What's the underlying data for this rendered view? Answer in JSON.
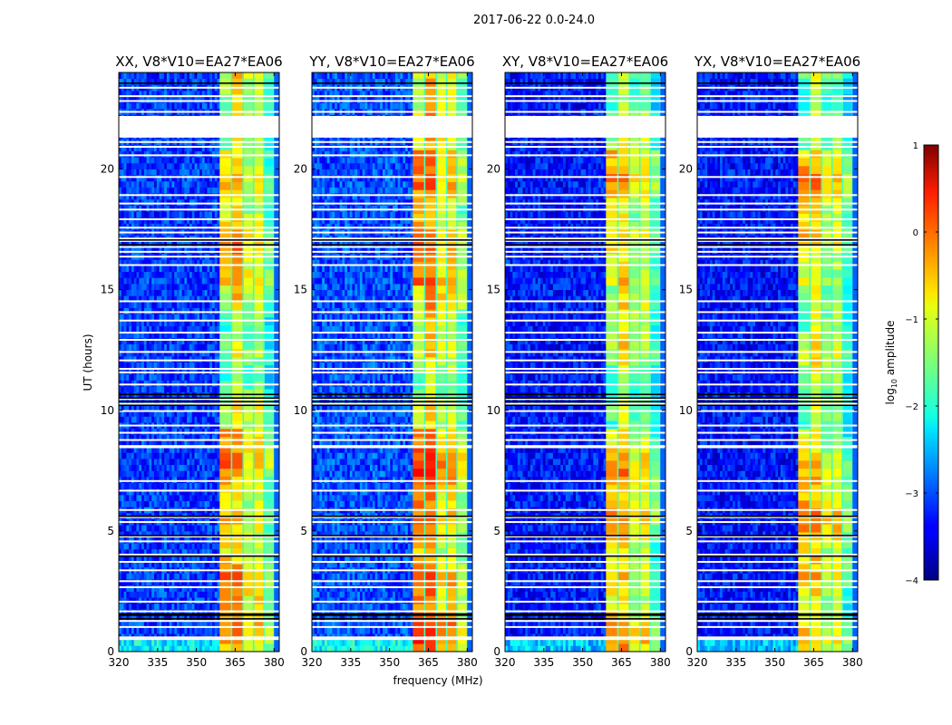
{
  "figure": {
    "suptitle": "2017-06-22 0.0-24.0"
  },
  "chart_data": {
    "type": "heatmap",
    "title": "2017-06-22 0.0-24.0",
    "xlabel": "frequency (MHz)",
    "ylabel": "UT (hours)",
    "xlim": [
      320,
      382
    ],
    "ylim": [
      0,
      24
    ],
    "x_ticks": [
      "320",
      "335",
      "350",
      "365",
      "380"
    ],
    "x_tick_values": [
      320,
      335,
      350,
      365,
      380
    ],
    "y_ticks": [
      "0",
      "5",
      "10",
      "15",
      "20"
    ],
    "y_tick_values": [
      0,
      5,
      10,
      15,
      20
    ],
    "colormap": "jet",
    "colorbar": {
      "label_prefix": "log",
      "label_sub": "10",
      "label_suffix": " amplitude",
      "range": [
        -4,
        1
      ],
      "ticks": [
        "1",
        "0",
        "−1",
        "−2",
        "−3",
        "−4"
      ],
      "tick_values": [
        1,
        0,
        -1,
        -2,
        -3,
        -4
      ]
    },
    "rfi_band_mhz": [
      359,
      380
    ],
    "flag_gap_hours": [
      21.3,
      22.2
    ],
    "panels": [
      {
        "title": "XX, V8*V10=EA27*EA06",
        "background_log_amp": -3.1,
        "rfi_peak_log_amp": 0.2
      },
      {
        "title": "YY, V8*V10=EA27*EA06",
        "background_log_amp": -3.0,
        "rfi_peak_log_amp": 0.5
      },
      {
        "title": "XY, V8*V10=EA27*EA06",
        "background_log_amp": -3.3,
        "rfi_peak_log_amp": 0.1
      },
      {
        "title": "YX, V8*V10=EA27*EA06",
        "background_log_amp": -3.3,
        "rfi_peak_log_amp": 0.1
      }
    ]
  }
}
